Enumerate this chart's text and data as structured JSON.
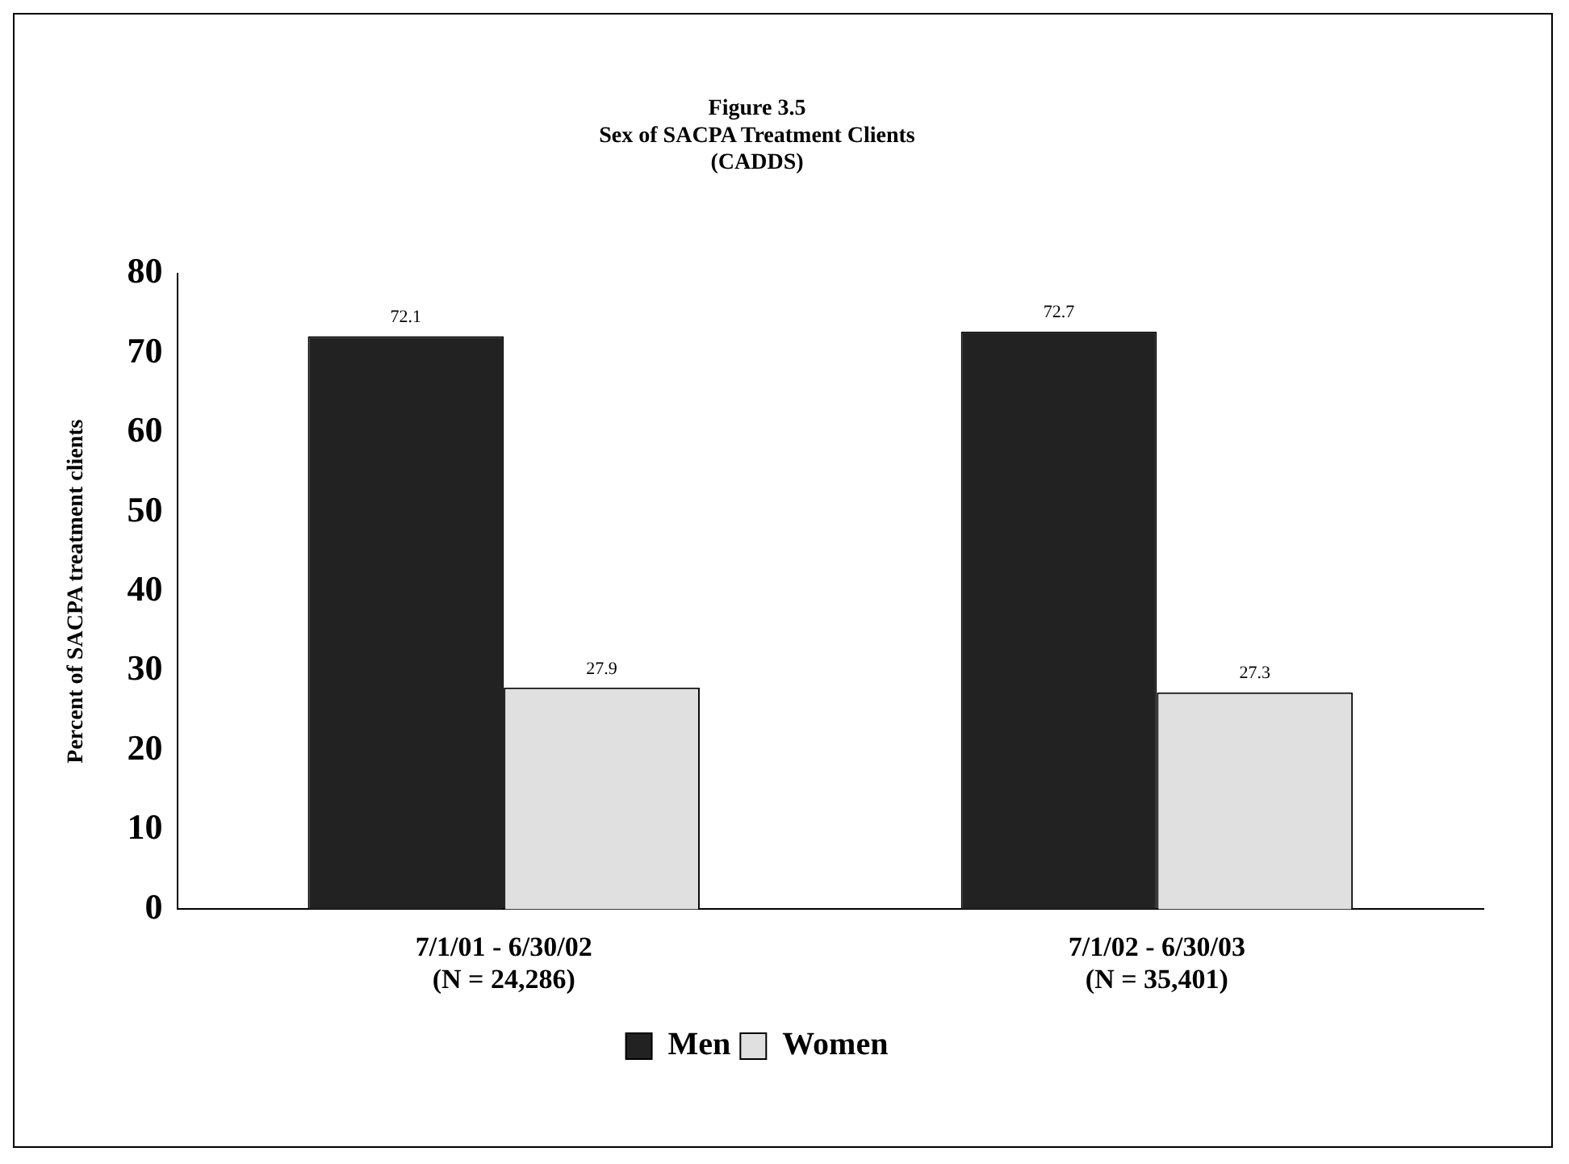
{
  "chart_data": {
    "type": "bar",
    "title": "Figure 3.5\nSex of SACPA Treatment Clients\n(CADDS)",
    "ylabel": "Percent of SACPA treatment clients",
    "categories": [
      "7/1/01 - 6/30/02\n(N = 24,286)",
      "7/1/02 - 6/30/03\n(N = 35,401)"
    ],
    "series": [
      {
        "name": "Men",
        "color": "#222222",
        "values": [
          72.1,
          72.7
        ]
      },
      {
        "name": "Women",
        "color": "#e0e0e0",
        "values": [
          27.9,
          27.3
        ]
      }
    ],
    "ylim": [
      0,
      80
    ],
    "yticks": [
      0,
      10,
      20,
      30,
      40,
      50,
      60,
      70,
      80
    ],
    "grid": false,
    "legend": "bottom",
    "data_labels": true
  }
}
